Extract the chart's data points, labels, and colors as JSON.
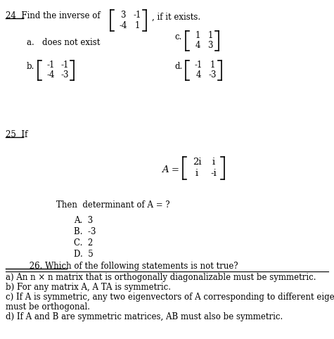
{
  "bg_color": "#ffffff",
  "text_color": "#000000",
  "fig_width": 4.75,
  "fig_height": 4.82,
  "q24_matrix": [
    [
      "3",
      "-1"
    ],
    [
      "-4",
      "1"
    ]
  ],
  "q24_b_matrix": [
    [
      "-1",
      "-1"
    ],
    [
      "-4",
      "-3"
    ]
  ],
  "q24_c_matrix": [
    [
      "1",
      "1"
    ],
    [
      "4",
      "3"
    ]
  ],
  "q24_d_matrix": [
    [
      "-1",
      "1"
    ],
    [
      "4",
      "-3"
    ]
  ],
  "q25_matrix": [
    [
      "2i",
      "i"
    ],
    [
      "i",
      "-i"
    ]
  ],
  "q25_choices": [
    "A.  3",
    "B.  -3",
    "C.  2",
    "D.  5"
  ],
  "q26_line1": "         26. Which of the following statements is not true?",
  "q26_a": "a) An n × n matrix that is orthogonally diagonalizable must be symmetric.",
  "q26_b": "b) For any matrix A, A TA is symmetric.",
  "q26_c": "c) If A is symmetric, any two eigenvectors of A corresponding to different eigenvalues",
  "q26_c2": "must be orthogonal.",
  "q26_d": "d) If A and B are symmetric matrices, AB must also be symmetric.",
  "font_size": 8.5,
  "font_size_small": 7.5
}
